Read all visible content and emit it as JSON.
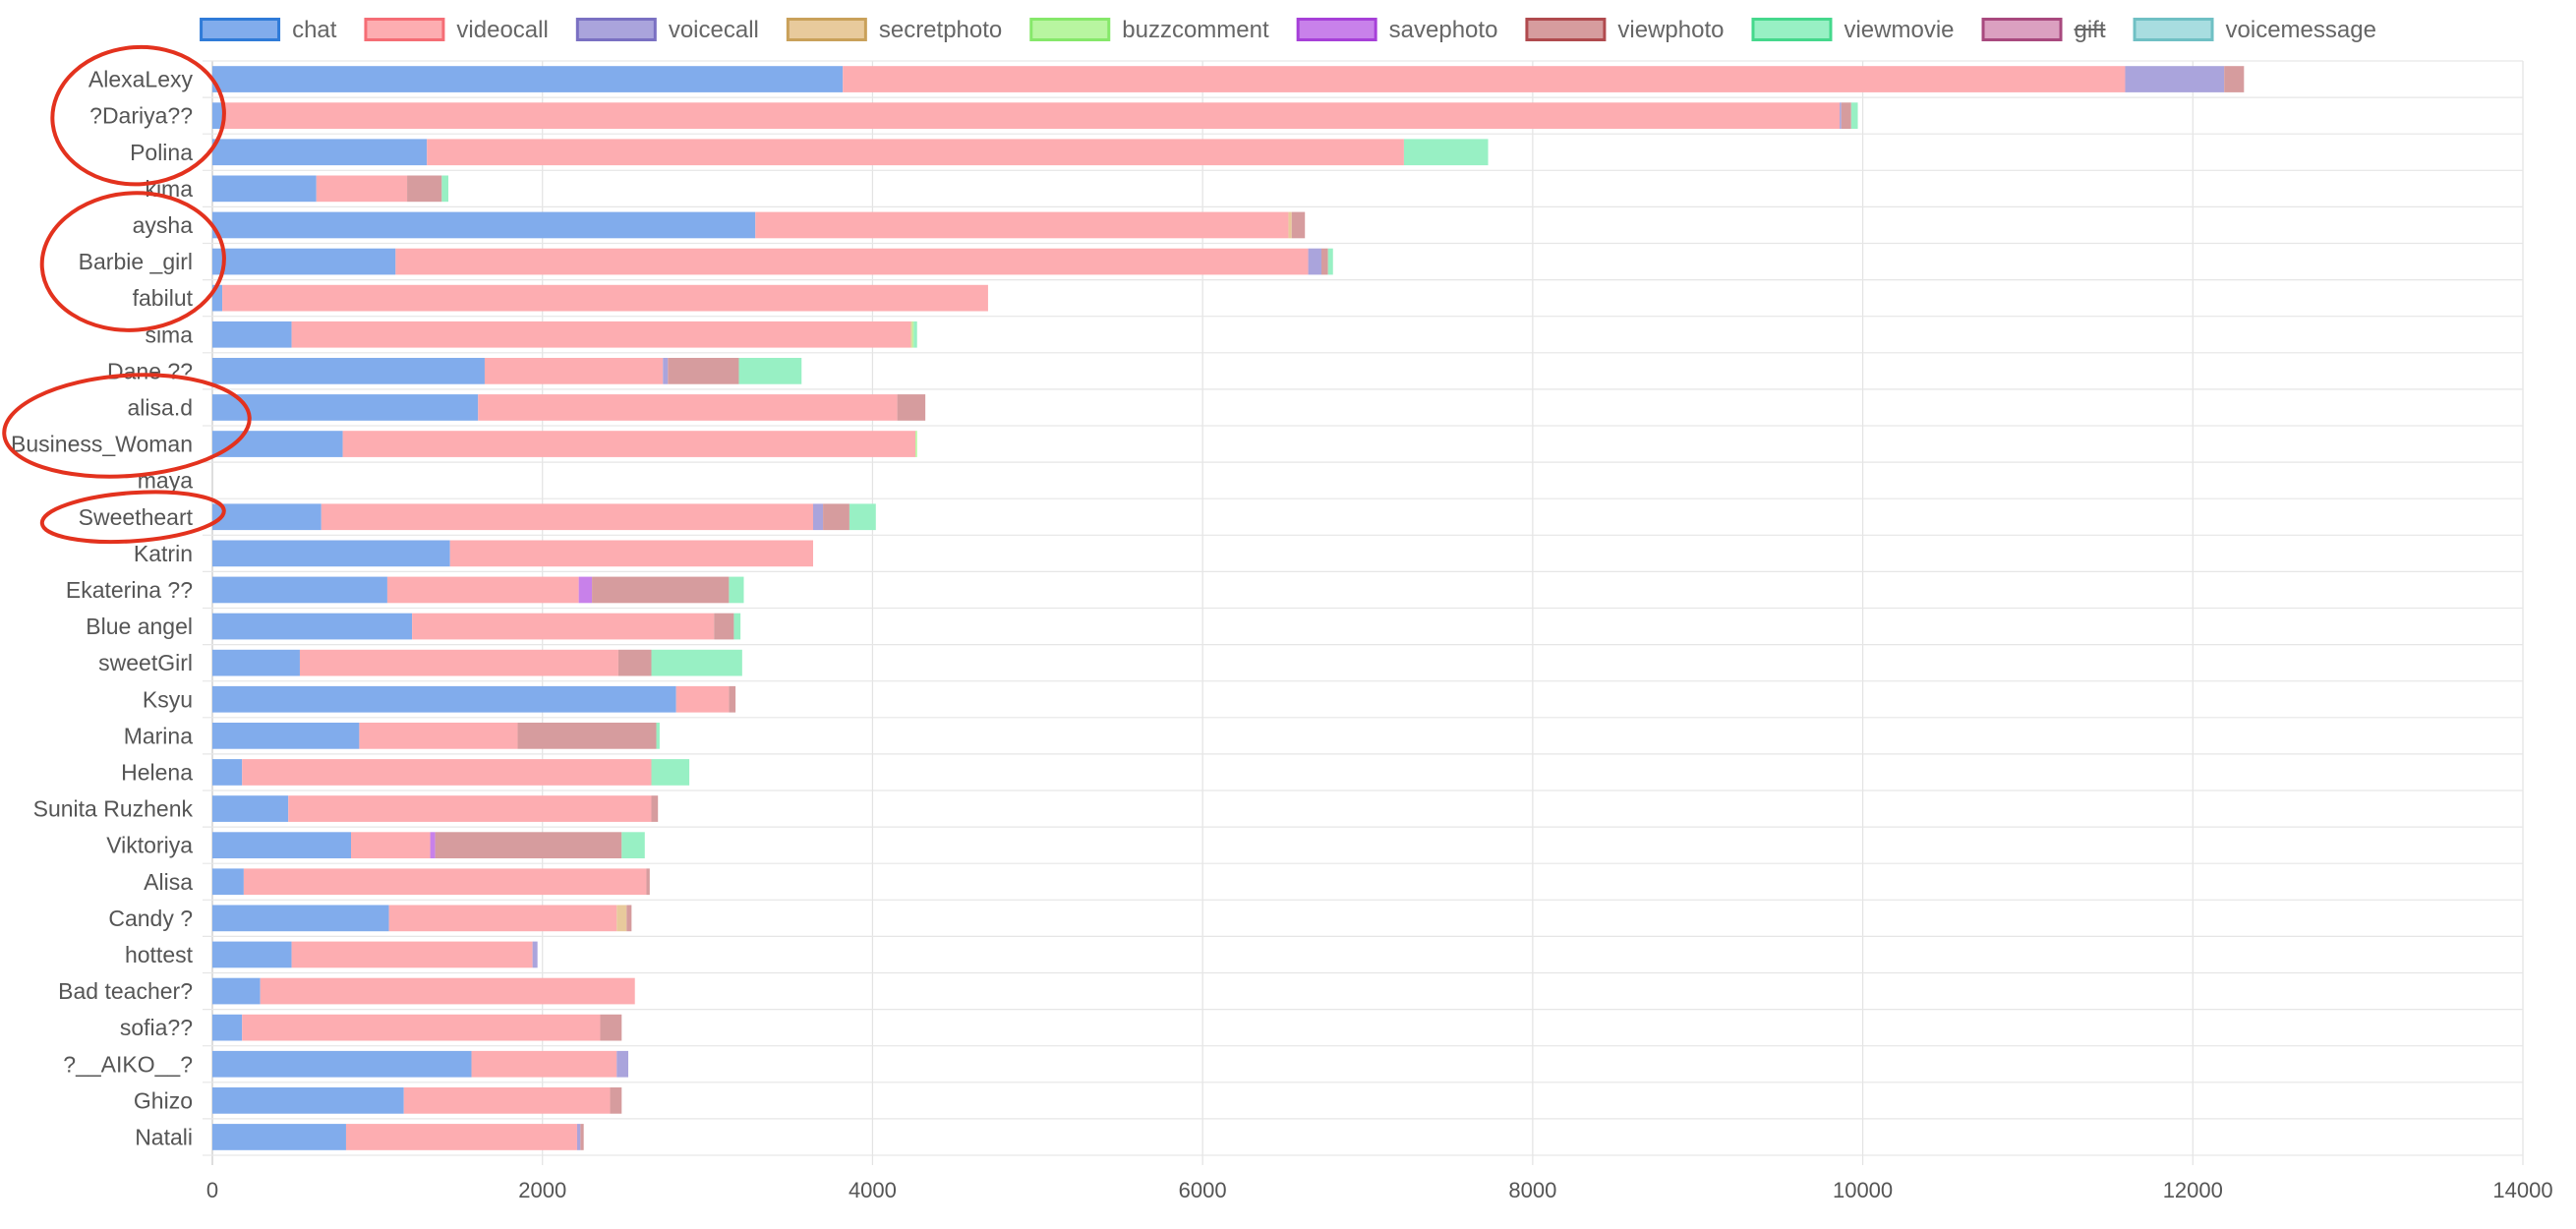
{
  "chart_data": {
    "type": "bar",
    "orientation": "horizontal",
    "stacked": true,
    "xlim": [
      0,
      14000
    ],
    "x_ticks": [
      "0",
      "2000",
      "4000",
      "6000",
      "8000",
      "10000",
      "12000",
      "14000"
    ],
    "grid": true,
    "legend_position": "top",
    "categories": [
      "AlexaLexy",
      "?Dariya??",
      "Polina",
      "kima",
      "aysha",
      "Barbie _girl",
      "fabilut",
      "sima",
      "Dane ??",
      "alisa.d",
      "Business_Woman",
      "maya",
      "Sweetheart",
      "Katrin",
      "Ekaterina ??",
      "Blue angel",
      "sweetGirl",
      "Ksyu",
      "Marina",
      "Helena",
      "Sunita Ruzhenk",
      "Viktoriya",
      "Alisa",
      "Candy ?",
      "hottest",
      "Bad teacher?",
      "sofia??",
      "?__AIKO__?",
      "Ghizo",
      "Natali"
    ],
    "series": [
      {
        "name": "chat",
        "color": "#81acec",
        "border": "#2f7bd8",
        "hidden": false,
        "values": [
          3820,
          60,
          1300,
          630,
          3290,
          1110,
          60,
          480,
          1650,
          1610,
          790,
          0,
          660,
          1440,
          1060,
          1210,
          530,
          2810,
          890,
          180,
          460,
          840,
          190,
          1070,
          480,
          290,
          180,
          1570,
          1160,
          810
        ]
      },
      {
        "name": "videocall",
        "color": "#fdadb1",
        "border": "#f56d75",
        "hidden": false,
        "values": [
          7770,
          9800,
          5920,
          550,
          3230,
          5530,
          4640,
          3750,
          1080,
          2540,
          3470,
          0,
          2980,
          2200,
          1160,
          1830,
          1930,
          320,
          960,
          2480,
          2200,
          480,
          2440,
          1380,
          1460,
          2270,
          2170,
          880,
          1250,
          1400
        ]
      },
      {
        "name": "voicecall",
        "color": "#aaa4dc",
        "border": "#7a70c2",
        "hidden": false,
        "values": [
          600,
          10,
          0,
          0,
          0,
          80,
          0,
          0,
          30,
          0,
          0,
          0,
          60,
          0,
          0,
          0,
          0,
          0,
          0,
          0,
          0,
          0,
          0,
          0,
          30,
          0,
          0,
          70,
          0,
          20
        ]
      },
      {
        "name": "secretphoto",
        "color": "#e8ca9c",
        "border": "#c9a15a",
        "hidden": false,
        "values": [
          0,
          0,
          0,
          0,
          20,
          0,
          0,
          10,
          0,
          0,
          0,
          0,
          0,
          0,
          0,
          0,
          0,
          0,
          0,
          0,
          0,
          0,
          0,
          60,
          0,
          0,
          0,
          0,
          0,
          0
        ]
      },
      {
        "name": "buzzcomment",
        "color": "#b8f5a0",
        "border": "#86e86a",
        "hidden": false,
        "values": [
          0,
          0,
          0,
          0,
          0,
          0,
          0,
          10,
          0,
          0,
          10,
          0,
          0,
          0,
          0,
          0,
          0,
          0,
          0,
          0,
          0,
          0,
          0,
          0,
          0,
          0,
          0,
          0,
          0,
          0
        ]
      },
      {
        "name": "savephoto",
        "color": "#c881ea",
        "border": "#a640d8",
        "hidden": false,
        "values": [
          0,
          0,
          0,
          0,
          0,
          0,
          0,
          0,
          0,
          0,
          0,
          0,
          0,
          0,
          80,
          0,
          0,
          0,
          0,
          0,
          0,
          30,
          0,
          0,
          0,
          0,
          0,
          0,
          0,
          0
        ]
      },
      {
        "name": "viewphoto",
        "color": "#d69c9e",
        "border": "#b04a4e",
        "hidden": false,
        "values": [
          120,
          60,
          0,
          210,
          80,
          40,
          0,
          0,
          430,
          170,
          0,
          0,
          160,
          0,
          830,
          120,
          200,
          40,
          840,
          0,
          40,
          1130,
          20,
          30,
          0,
          0,
          130,
          0,
          70,
          20
        ]
      },
      {
        "name": "viewmovie",
        "color": "#98f0c4",
        "border": "#45d88c",
        "hidden": false,
        "values": [
          0,
          40,
          510,
          40,
          0,
          30,
          0,
          20,
          380,
          0,
          0,
          0,
          160,
          0,
          90,
          40,
          550,
          0,
          20,
          230,
          0,
          140,
          0,
          0,
          0,
          0,
          0,
          0,
          0,
          0
        ]
      },
      {
        "name": "gift",
        "color": "#dba0c0",
        "border": "#a8497e",
        "hidden": true,
        "values": [
          0,
          0,
          0,
          0,
          0,
          0,
          0,
          0,
          0,
          0,
          0,
          0,
          0,
          0,
          0,
          0,
          0,
          0,
          0,
          0,
          0,
          0,
          0,
          0,
          0,
          0,
          0,
          0,
          0,
          0
        ]
      },
      {
        "name": "voicemessage",
        "color": "#a8dde0",
        "border": "#6fc0c4",
        "hidden": false,
        "values": [
          0,
          0,
          0,
          0,
          0,
          0,
          0,
          0,
          0,
          0,
          0,
          0,
          0,
          0,
          0,
          0,
          0,
          0,
          0,
          0,
          0,
          0,
          0,
          0,
          0,
          0,
          0,
          0,
          0,
          0
        ]
      }
    ],
    "annotations": {
      "type": "hand-drawn-ellipse",
      "color": "#e3321e",
      "circled_categories": [
        [
          "AlexaLexy",
          "?Dariya??",
          "Polina"
        ],
        [
          "aysha",
          "Barbie _girl",
          "fabilut"
        ],
        [
          "alisa.d",
          "Business_Woman"
        ],
        [
          "Sweetheart"
        ]
      ]
    }
  }
}
